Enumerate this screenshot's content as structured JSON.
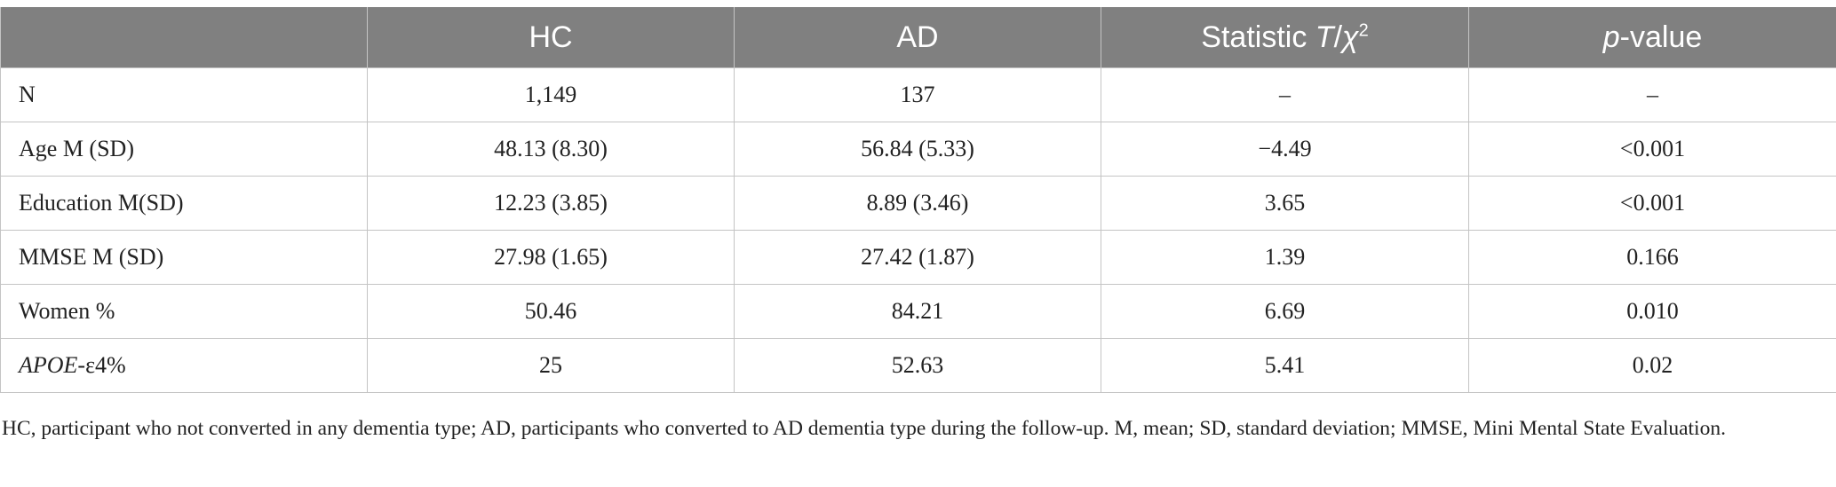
{
  "table": {
    "headers": {
      "label": "",
      "hc": "HC",
      "ad": "AD",
      "statistic_prefix": "Statistic ",
      "statistic_t": "T",
      "statistic_slash": "/",
      "statistic_chi": "χ",
      "statistic_sup": "2",
      "pvalue_p": "p",
      "pvalue_rest": "-value"
    },
    "rows": [
      {
        "label": "N",
        "hc": "1,149",
        "ad": "137",
        "statistic": "–",
        "p": "–"
      },
      {
        "label": "Age M (SD)",
        "hc": "48.13 (8.30)",
        "ad": "56.84 (5.33)",
        "statistic": "−4.49",
        "p": "<0.001"
      },
      {
        "label": "Education M(SD)",
        "hc": "12.23 (3.85)",
        "ad": "8.89 (3.46)",
        "statistic": "3.65",
        "p": "<0.001"
      },
      {
        "label": "MMSE M (SD)",
        "hc": "27.98 (1.65)",
        "ad": "27.42 (1.87)",
        "statistic": "1.39",
        "p": "0.166"
      },
      {
        "label": "Women %",
        "hc": "50.46",
        "ad": "84.21",
        "statistic": "6.69",
        "p": "0.010"
      },
      {
        "label_italic": "APOE",
        "label_rest": "-ε4%",
        "hc": "25",
        "ad": "52.63",
        "statistic": "5.41",
        "p": "0.02"
      }
    ]
  },
  "footnote": "HC, participant who not converted in any dementia type; AD, participants who converted to AD dementia type during the follow-up. M, mean; SD, standard deviation; MMSE, Mini Mental State Evaluation.",
  "colors": {
    "header_bg": "#808080",
    "header_text": "#ffffff",
    "grid": "#c4c4c4",
    "text": "#222222"
  }
}
